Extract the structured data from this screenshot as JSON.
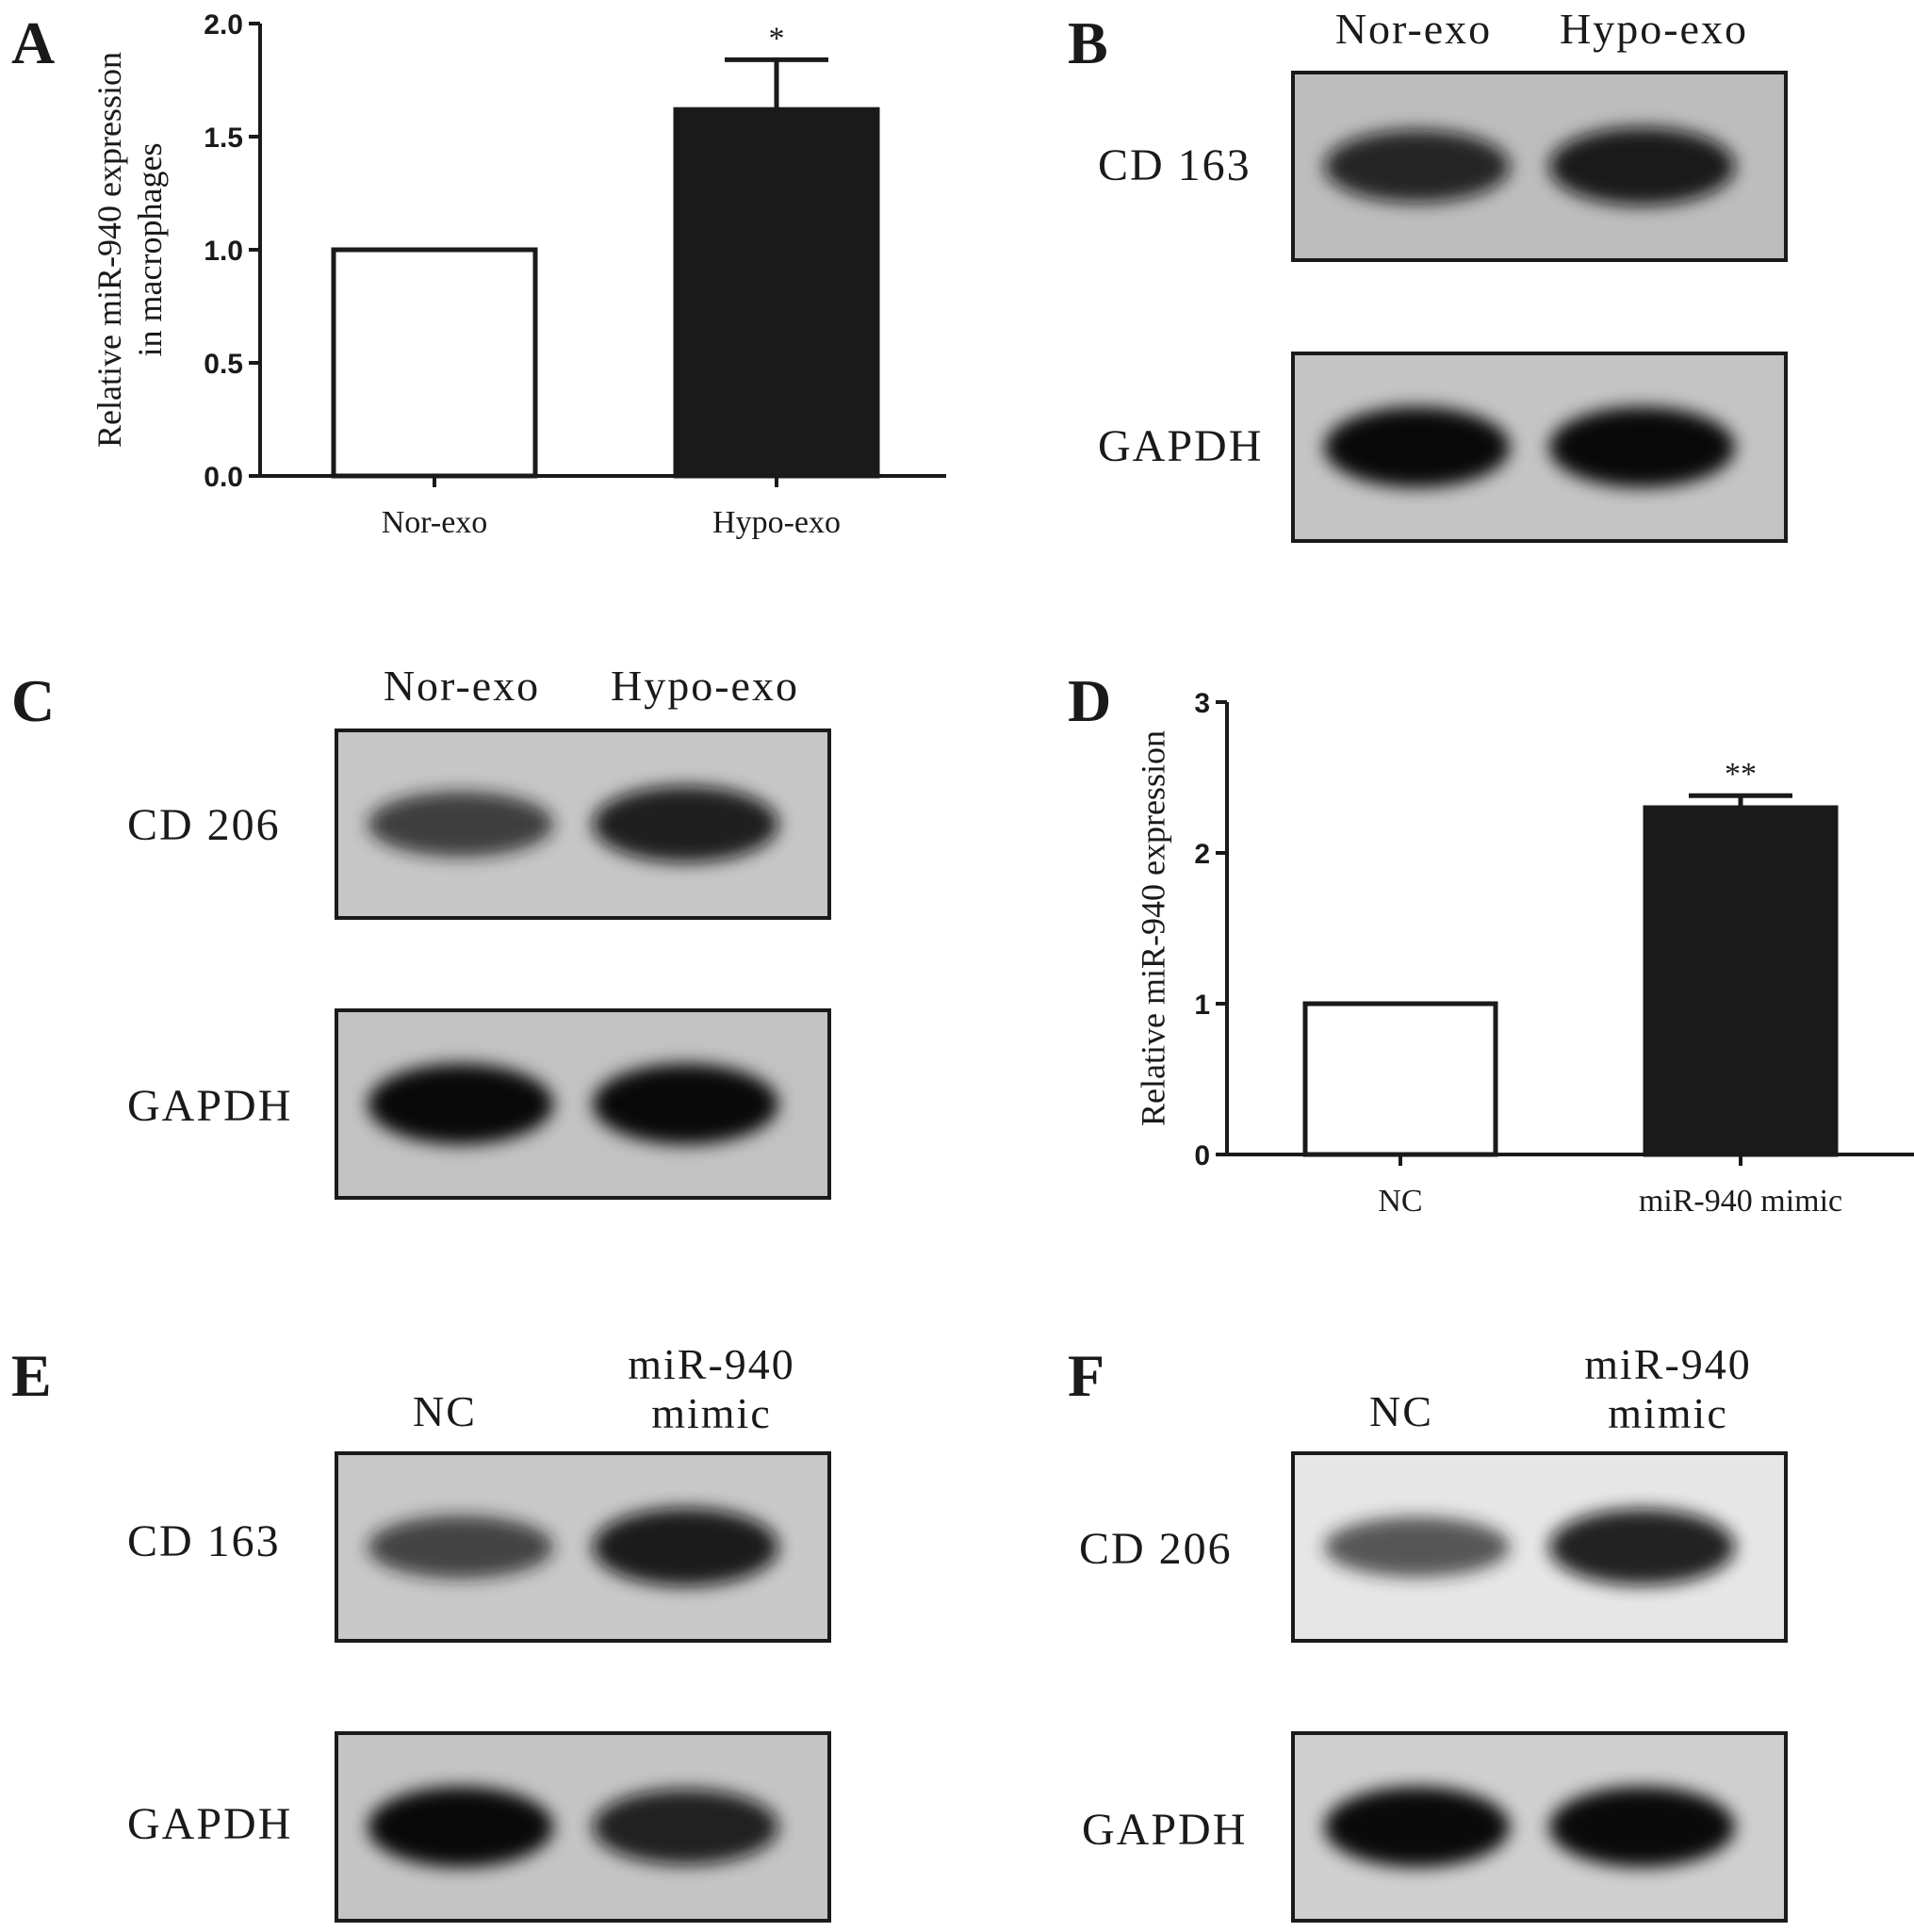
{
  "panels": {
    "A": {
      "letter": "A",
      "chart_data": {
        "type": "bar",
        "categories": [
          "Nor-exo",
          "Hypo-exo"
        ],
        "values": [
          1.0,
          1.62
        ],
        "errors": [
          0,
          0.22
        ],
        "significance": [
          "",
          "*"
        ],
        "fills": [
          "#ffffff",
          "#1a1a1a"
        ],
        "ylabel_lines": [
          "Relative miR-940 expression",
          "in macrophages"
        ],
        "ylim": [
          0,
          2.0
        ],
        "yticks": [
          "0.0",
          "0.5",
          "1.0",
          "1.5",
          "2.0"
        ],
        "ytick_values": [
          0,
          0.5,
          1.0,
          1.5,
          2.0
        ]
      }
    },
    "B": {
      "letter": "B",
      "lanes": [
        "Nor-exo",
        "Hypo-exo"
      ],
      "blots": [
        {
          "label": "CD 163",
          "bands": [
            0.85,
            0.95
          ],
          "bg": "#bdbdbd"
        },
        {
          "label": "GAPDH",
          "bands": [
            1.0,
            1.0
          ],
          "bg": "#c4c4c4"
        }
      ]
    },
    "C": {
      "letter": "C",
      "lanes": [
        "Nor-exo",
        "Hypo-exo"
      ],
      "blots": [
        {
          "label": "CD 206",
          "bands": [
            0.7,
            0.92
          ],
          "bg": "#c6c6c6"
        },
        {
          "label": "GAPDH",
          "bands": [
            1.0,
            1.0
          ],
          "bg": "#c2c2c2"
        }
      ]
    },
    "D": {
      "letter": "D",
      "chart_data": {
        "type": "bar",
        "categories": [
          "NC",
          "miR-940 mimic"
        ],
        "values": [
          1.0,
          2.3
        ],
        "errors": [
          0,
          0.08
        ],
        "significance": [
          "",
          "**"
        ],
        "fills": [
          "#ffffff",
          "#1a1a1a"
        ],
        "ylabel_lines": [
          "Relative miR-940 expression"
        ],
        "ylim": [
          0,
          3
        ],
        "yticks": [
          "0",
          "1",
          "2",
          "3"
        ],
        "ytick_values": [
          0,
          1,
          2,
          3
        ]
      }
    },
    "E": {
      "letter": "E",
      "lanes": [
        "NC",
        "miR-940\nmimic"
      ],
      "blots": [
        {
          "label": "CD 163",
          "bands": [
            0.65,
            0.95
          ],
          "bg": "#c8c8c8"
        },
        {
          "label": "GAPDH",
          "bands": [
            1.0,
            0.9
          ],
          "bg": "#c4c4c4"
        }
      ]
    },
    "F": {
      "letter": "F",
      "lanes": [
        "NC",
        "miR-940\nmimic"
      ],
      "blots": [
        {
          "label": "CD 206",
          "bands": [
            0.6,
            0.92
          ],
          "bg": "#e6e6e6"
        },
        {
          "label": "GAPDH",
          "bands": [
            1.0,
            1.0
          ],
          "bg": "#cfcfcf"
        }
      ]
    }
  }
}
